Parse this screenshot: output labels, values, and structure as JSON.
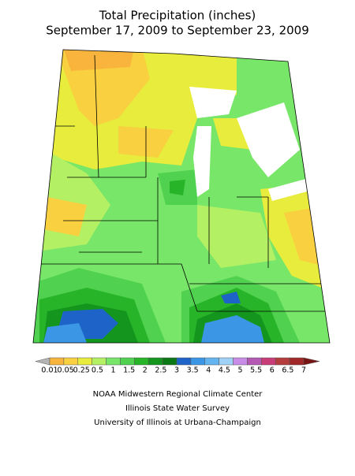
{
  "header": {
    "title": "Total Precipitation (inches)",
    "subtitle": "September 17, 2009 to September 23, 2009"
  },
  "legend": {
    "labels": [
      0.01,
      0.05,
      0.25,
      0.5,
      1,
      1.5,
      2,
      2.5,
      3,
      3.5,
      4,
      4.5,
      5,
      5.5,
      6,
      6.5,
      7
    ],
    "colors": [
      "#b4b4b4",
      "#f8b43c",
      "#f8d040",
      "#e8ec3c",
      "#b4f064",
      "#78e668",
      "#50d250",
      "#28b428",
      "#14961e",
      "#0a7814",
      "#1e64c8",
      "#3c96e6",
      "#64b4f0",
      "#a0d2f8",
      "#c88ce6",
      "#b45ab4",
      "#c83c78",
      "#b43c3c",
      "#a02828",
      "#781414"
    ]
  },
  "credits": [
    "NOAA Midwestern Regional Climate Center",
    "Illinois State Water Survey",
    "University of Illinois at Urbana-Champaign"
  ]
}
